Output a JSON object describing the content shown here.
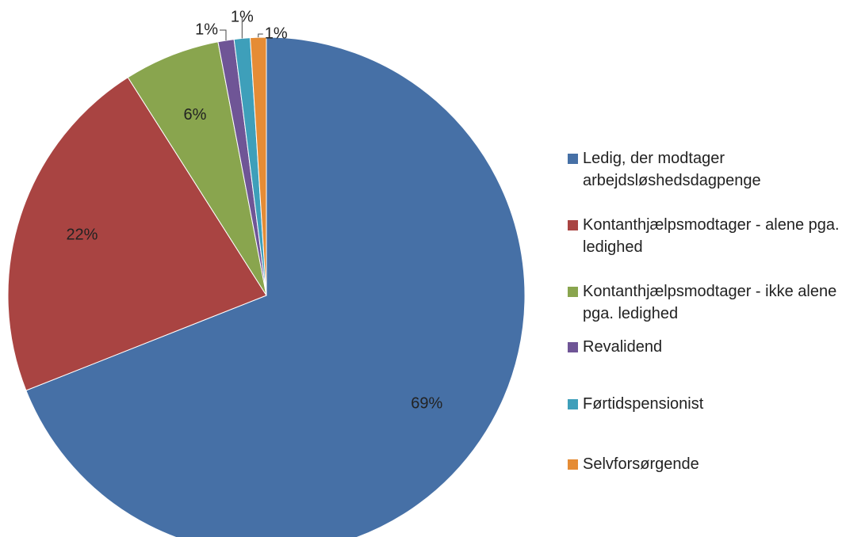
{
  "chart_data": {
    "type": "pie",
    "categories": [
      "Ledig, der modtager arbejdsløshedsdagpenge",
      "Kontanthjælpsmodtager - alene pga. ledighed",
      "Kontanthjælpsmodtager - ikke alene pga. ledighed",
      "Revalidend",
      "Førtidspensionist",
      "Selvforsørgende"
    ],
    "values": [
      69,
      22,
      6,
      1,
      1,
      1
    ],
    "value_labels": [
      "69%",
      "22%",
      "6%",
      "1%",
      "1%",
      "1%"
    ],
    "colors": [
      "#4670a6",
      "#a94442",
      "#89a54e",
      "#6f5596",
      "#3e9fba",
      "#e58c35"
    ],
    "legend": "right"
  }
}
